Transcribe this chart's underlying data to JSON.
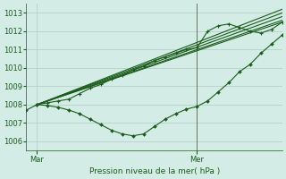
{
  "title": "Pression niveau de la mer( hPa )",
  "bg_color": "#d4ece6",
  "grid_color": "#b0ccbe",
  "line_color": "#1a5c1a",
  "ylim": [
    1005.5,
    1013.5
  ],
  "yticks": [
    1006,
    1007,
    1008,
    1009,
    1010,
    1011,
    1012,
    1013
  ],
  "xlim": [
    0,
    48
  ],
  "xtick_pos": [
    2,
    32
  ],
  "xtick_labels": [
    "Mar",
    "Mer"
  ],
  "vline_x": 32,
  "straight_lines": [
    {
      "x": [
        2,
        48
      ],
      "y": [
        1008.0,
        1012.5
      ]
    },
    {
      "x": [
        2,
        48
      ],
      "y": [
        1008.0,
        1012.6
      ]
    },
    {
      "x": [
        2,
        48
      ],
      "y": [
        1008.0,
        1012.8
      ]
    },
    {
      "x": [
        2,
        48
      ],
      "y": [
        1008.0,
        1013.0
      ]
    },
    {
      "x": [
        2,
        48
      ],
      "y": [
        1008.0,
        1013.2
      ]
    }
  ],
  "dip_line": {
    "x": [
      0,
      2,
      4,
      6,
      8,
      10,
      12,
      14,
      16,
      18,
      20,
      22,
      24,
      26,
      28,
      30,
      32,
      34,
      36,
      38,
      40,
      42,
      44,
      46,
      48
    ],
    "y": [
      1007.7,
      1008.0,
      1007.95,
      1007.85,
      1007.7,
      1007.5,
      1007.2,
      1006.9,
      1006.6,
      1006.4,
      1006.3,
      1006.4,
      1006.8,
      1007.2,
      1007.5,
      1007.75,
      1007.9,
      1008.2,
      1008.7,
      1009.2,
      1009.8,
      1010.2,
      1010.8,
      1011.3,
      1011.8
    ]
  },
  "wavy_line": {
    "x": [
      2,
      4,
      6,
      8,
      10,
      12,
      14,
      16,
      18,
      20,
      22,
      24,
      26,
      28,
      30,
      32,
      34,
      36,
      38,
      40,
      42,
      44,
      46,
      48
    ],
    "y": [
      1008.0,
      1008.1,
      1008.2,
      1008.3,
      1008.6,
      1008.9,
      1009.1,
      1009.4,
      1009.6,
      1009.9,
      1010.1,
      1010.4,
      1010.6,
      1010.8,
      1011.0,
      1011.1,
      1012.0,
      1012.3,
      1012.4,
      1012.2,
      1012.0,
      1011.9,
      1012.1,
      1012.5
    ]
  }
}
